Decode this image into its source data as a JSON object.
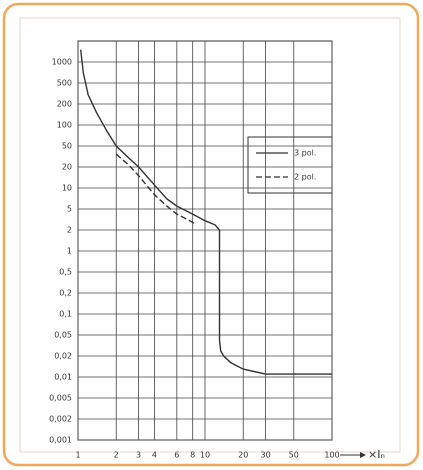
{
  "chart_data": {
    "type": "line",
    "x_label": "×Iₙ",
    "xscale": "log",
    "yscale": "log",
    "grid": true,
    "legend_position": "upper right",
    "xlim": [
      1,
      100
    ],
    "xticks": [
      1,
      2,
      3,
      4,
      6,
      8,
      10,
      20,
      30,
      50,
      100
    ],
    "ylim": [
      0.001,
      2000
    ],
    "yticks": [
      {
        "value": 0.001,
        "label": "0,001"
      },
      {
        "value": 0.002,
        "label": "0,002"
      },
      {
        "value": 0.005,
        "label": "0,005"
      },
      {
        "value": 0.01,
        "label": "0,01"
      },
      {
        "value": 0.02,
        "label": "0,02"
      },
      {
        "value": 0.05,
        "label": "0,05"
      },
      {
        "value": 0.1,
        "label": "0,1"
      },
      {
        "value": 0.2,
        "label": "0,2"
      },
      {
        "value": 0.5,
        "label": "0,5"
      },
      1,
      2,
      5,
      10,
      20,
      50,
      100,
      200,
      500,
      1000
    ],
    "series": [
      {
        "name": "3 pol.",
        "color": "#333333",
        "dash": "solid",
        "x": [
          1.05,
          1.1,
          1.2,
          1.4,
          1.7,
          2,
          2.5,
          3,
          4,
          5,
          6,
          8,
          10,
          12,
          13,
          13,
          13.3,
          14,
          16,
          20,
          30,
          50,
          100
        ],
        "values": [
          1500,
          700,
          300,
          150,
          80,
          50,
          30,
          20,
          11,
          7,
          5.5,
          4,
          3,
          2.5,
          2,
          0.04,
          0.025,
          0.02,
          0.016,
          0.013,
          0.011,
          0.011,
          0.011
        ]
      },
      {
        "name": "2 pol.",
        "color": "#333333",
        "dash": "dashed",
        "x": [
          2,
          2.5,
          3,
          4,
          5,
          6,
          8,
          8.5
        ],
        "values": [
          35,
          22,
          15,
          8,
          5.5,
          4,
          2.8,
          2.5
        ]
      }
    ]
  }
}
